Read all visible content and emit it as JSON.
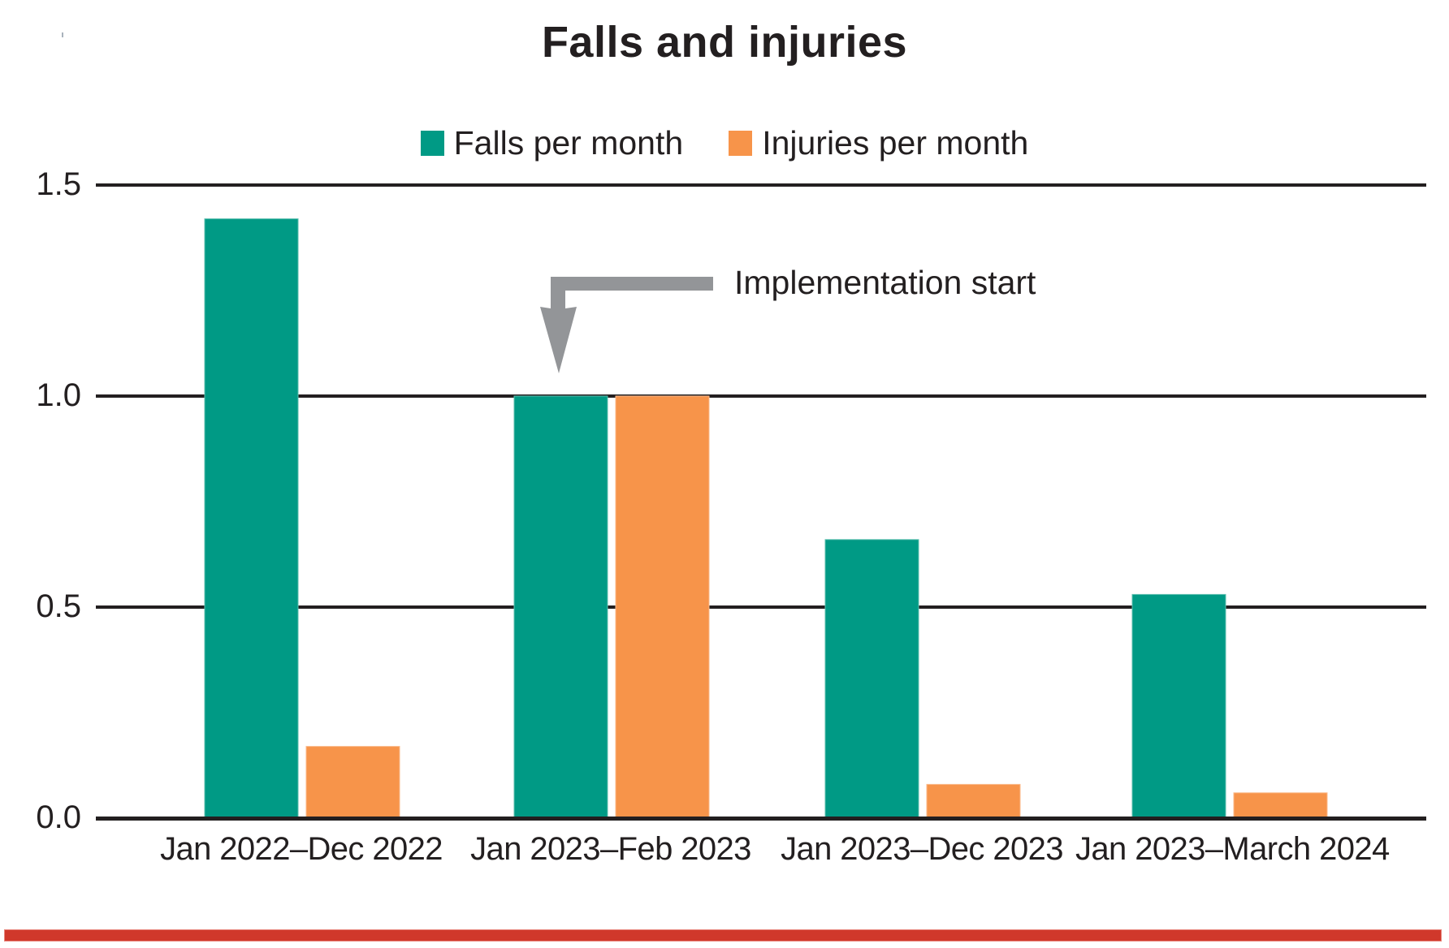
{
  "title": "Falls and injuries",
  "legend": [
    {
      "label": "Falls per month",
      "color": "#009a85"
    },
    {
      "label": "Injuries per month",
      "color": "#f7944a"
    }
  ],
  "annotation": {
    "text": "Implementation start",
    "icon": "elbow-arrow-down-icon",
    "color": "#939598",
    "points_to_category": "Jan 2023–Feb 2023"
  },
  "y_axis": {
    "ticks": [
      "0.0",
      "0.5",
      "1.0",
      "1.5"
    ]
  },
  "x_axis": {
    "labels": [
      "Jan 2022–Dec 2022",
      "Jan 2023–Feb 2023",
      "Jan 2023–Dec 2023",
      "Jan 2023–March 2024"
    ]
  },
  "colors": {
    "falls": "#009a85",
    "injuries": "#f7944a",
    "gridline": "#231f20",
    "bottom_rule": "#d0382b",
    "arrow": "#939598"
  },
  "chart_data": {
    "type": "bar",
    "title": "Falls and injuries",
    "xlabel": "",
    "ylabel": "",
    "categories": [
      "Jan 2022–Dec 2022",
      "Jan 2023–Feb 2023",
      "Jan 2023–Dec 2023",
      "Jan 2023–March 2024"
    ],
    "series": [
      {
        "name": "Falls per month",
        "color": "#009a85",
        "values": [
          1.42,
          1.0,
          0.66,
          0.53
        ]
      },
      {
        "name": "Injuries per month",
        "color": "#f7944a",
        "values": [
          0.17,
          1.0,
          0.08,
          0.06
        ]
      }
    ],
    "ylim": [
      0,
      1.5
    ],
    "yticks": [
      0.0,
      0.5,
      1.0,
      1.5
    ],
    "grid": "horizontal",
    "legend_position": "top",
    "annotations": [
      {
        "text": "Implementation start",
        "target_category": "Jan 2023–Feb 2023",
        "style": "elbow arrow pointing down"
      }
    ]
  }
}
